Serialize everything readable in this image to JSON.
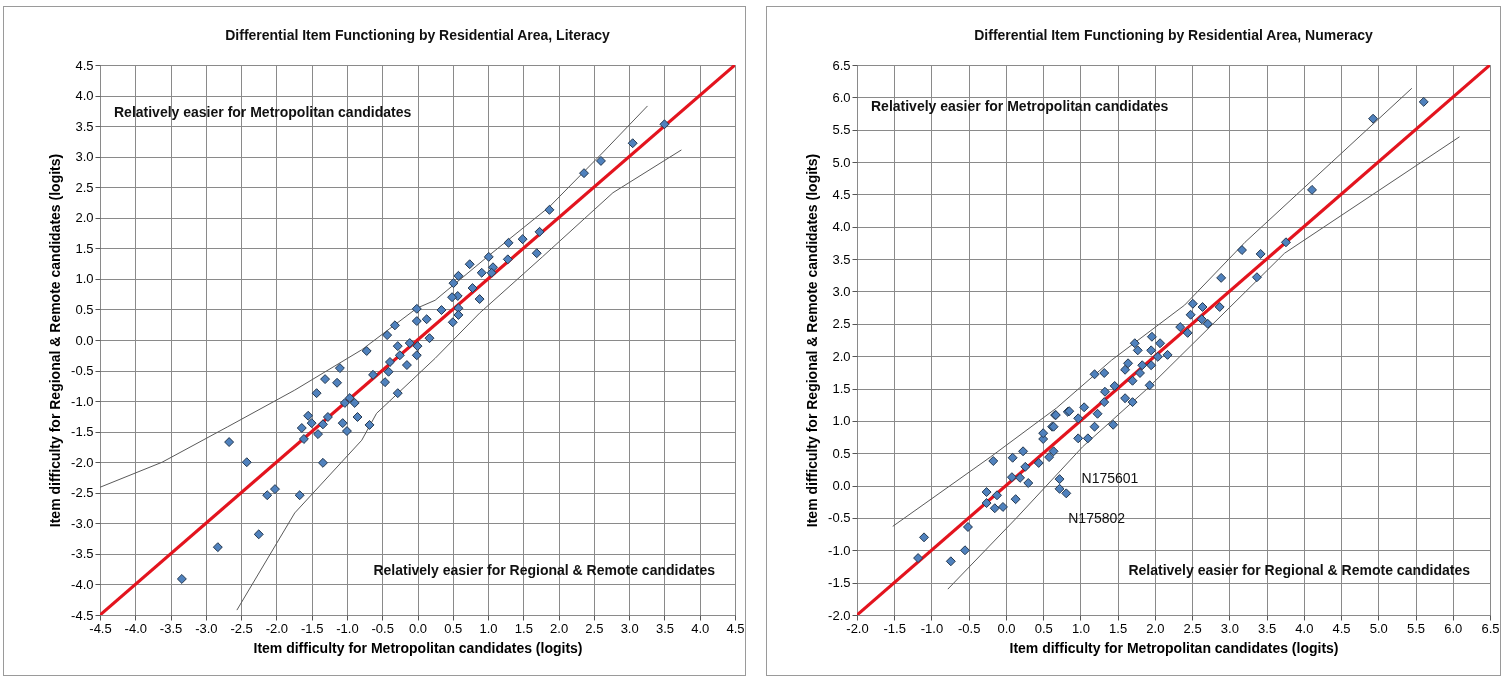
{
  "chart_data": [
    {
      "type": "scatter",
      "title": "Differential Item Functioning by Residential Area, Literacy",
      "xlabel": "Item difficulty for Metropolitan candidates (logits)",
      "ylabel": "Item difficulty for Regional & Remote candidates (logits)",
      "xlim": [
        -4.5,
        4.5
      ],
      "ylim": [
        -4.5,
        4.5
      ],
      "xticks": [
        -4.5,
        {
          "value": -4,
          "label": "-4.0"
        },
        -3.5,
        {
          "value": -3,
          "label": "-3.0"
        },
        -2.5,
        {
          "value": -2,
          "label": "-2.0"
        },
        -1.5,
        {
          "value": -1,
          "label": "-1.0"
        },
        -0.5,
        {
          "value": 0,
          "label": "0.0"
        },
        0.5,
        {
          "value": 1,
          "label": "1.0"
        },
        1.5,
        {
          "value": 2,
          "label": "2.0"
        },
        2.5,
        {
          "value": 3,
          "label": "3.0"
        },
        3.5,
        {
          "value": 4,
          "label": "4.0"
        },
        4.5
      ],
      "yticks": [
        -4.5,
        {
          "value": -4,
          "label": "-4.0"
        },
        -3.5,
        {
          "value": -3,
          "label": "-3.0"
        },
        -2.5,
        {
          "value": -2,
          "label": "-2.0"
        },
        -1.5,
        {
          "value": -1,
          "label": "-1.0"
        },
        -0.5,
        {
          "value": 0,
          "label": "0.0"
        },
        0.5,
        {
          "value": 1,
          "label": "1.0"
        },
        1.5,
        {
          "value": 2,
          "label": "2.0"
        },
        2.5,
        {
          "value": 3,
          "label": "3.0"
        },
        3.5,
        {
          "value": 4,
          "label": "4.0"
        },
        4.5
      ],
      "grid": true,
      "annotations": [
        "Relatively easier for Metropolitan candidates",
        "Relatively easier for Regional & Remote candidates"
      ],
      "series": [
        {
          "type": "scatter",
          "marker": "diamond",
          "color": "#4f81bd",
          "x": [
            3.5,
            3.05,
            2.6,
            2.36,
            1.87,
            1.73,
            1.69,
            1.49,
            1.29,
            1.28,
            1.01,
            1.07,
            1.05,
            0.91,
            0.74,
            0.78,
            0.88,
            0.58,
            0.51,
            0.57,
            0.49,
            0.58,
            0.5,
            0.58,
            0.34,
            -0.01,
            0.13,
            -0.01,
            -0.32,
            -0.43,
            -0.72,
            -1.1,
            -1.14,
            -0.28,
            -0.11,
            0,
            0.17,
            -0.25,
            -0.01,
            -0.15,
            -0.39,
            -0.41,
            -0.63,
            -0.46,
            -0.28,
            -0.96,
            -1.03,
            -1.31,
            -1.43,
            -0.89,
            -1.55,
            -1.27,
            -1.5,
            -1.34,
            -1.06,
            -0.85,
            -1.0,
            -1.64,
            -1.41,
            -1.61,
            -0.68,
            -2.67,
            -2.42,
            -1.34,
            -2.02,
            -2.13,
            -1.67,
            -2.25,
            -2.83,
            -3.34
          ],
          "values": [
            3.53,
            3.22,
            2.93,
            2.73,
            2.13,
            1.77,
            1.42,
            1.65,
            1.59,
            1.32,
            1.36,
            1.19,
            1.1,
            1.1,
            1.24,
            0.85,
            0.67,
            1.05,
            0.93,
            0.72,
            0.7,
            0.52,
            0.29,
            0.41,
            0.49,
            0.51,
            0.34,
            0.31,
            0.24,
            0.08,
            -0.18,
            -0.46,
            -0.7,
            -0.1,
            -0.05,
            -0.1,
            0.03,
            -0.25,
            -0.25,
            -0.41,
            -0.36,
            -0.52,
            -0.57,
            -0.69,
            -0.87,
            -0.95,
            -1.03,
            -0.64,
            -0.87,
            -1.03,
            -1.24,
            -1.26,
            -1.36,
            -1.38,
            -1.36,
            -1.26,
            -1.49,
            -1.44,
            -1.54,
            -1.62,
            -1.39,
            -1.67,
            -2.0,
            -2.01,
            -2.44,
            -2.54,
            -2.54,
            -3.18,
            -3.39,
            -3.91
          ]
        },
        {
          "type": "line",
          "color": "#e3141e",
          "x": [
            -4.5,
            4.5
          ],
          "values": [
            -4.5,
            4.5
          ]
        },
        {
          "type": "line",
          "color": "#5a5a5a",
          "x": [
            -4.5,
            -3.62,
            -2.69,
            -1.74,
            -0.79,
            -0.01,
            0.25,
            1.02,
            1.87,
            2.62,
            3.26
          ],
          "values": [
            -2.41,
            -2.0,
            -1.42,
            -0.82,
            -0.16,
            0.52,
            0.65,
            1.39,
            2.18,
            3.06,
            3.83
          ]
        },
        {
          "type": "line",
          "color": "#5a5a5a",
          "x": [
            -2.56,
            -1.74,
            -0.79,
            -0.58,
            0.25,
            0.88,
            1.77,
            2.77,
            3.74
          ],
          "values": [
            -4.42,
            -2.83,
            -1.64,
            -1.2,
            -0.3,
            0.44,
            1.36,
            2.41,
            3.11
          ]
        }
      ]
    },
    {
      "type": "scatter",
      "title": "Differential Item Functioning by Residential Area, Numeracy",
      "xlabel": "Item difficulty for Metropolitan candidates (logits)",
      "ylabel": "Item difficulty for Regional & Remote candidates (logits)",
      "xlim": [
        -2,
        6.5
      ],
      "ylim": [
        -2,
        6.5
      ],
      "xticks": [
        {
          "value": -2,
          "label": "-2.0"
        },
        -1.5,
        {
          "value": -1,
          "label": "-1.0"
        },
        -0.5,
        {
          "value": 0,
          "label": "0.0"
        },
        0.5,
        {
          "value": 1,
          "label": "1.0"
        },
        1.5,
        {
          "value": 2,
          "label": "2.0"
        },
        2.5,
        {
          "value": 3,
          "label": "3.0"
        },
        3.5,
        {
          "value": 4,
          "label": "4.0"
        },
        4.5,
        {
          "value": 5,
          "label": "5.0"
        },
        5.5,
        {
          "value": 6,
          "label": "6.0"
        },
        6.5
      ],
      "yticks": [
        {
          "value": -2,
          "label": "-2.0"
        },
        -1.5,
        {
          "value": -1,
          "label": "-1.0"
        },
        -0.5,
        {
          "value": 0,
          "label": "0.0"
        },
        0.5,
        {
          "value": 1,
          "label": "1.0"
        },
        1.5,
        {
          "value": 2,
          "label": "2.0"
        },
        2.5,
        {
          "value": 3,
          "label": "3.0"
        },
        3.5,
        {
          "value": 4,
          "label": "4.0"
        },
        4.5,
        {
          "value": 5,
          "label": "5.0"
        },
        5.5,
        {
          "value": 6,
          "label": "6.0"
        },
        6.5
      ],
      "grid": true,
      "annotations": [
        "Relatively easier for Metropolitan candidates",
        "Relatively easier for Regional & Remote candidates",
        {
          "text": "N175601",
          "x": 0.72,
          "y": 0.1
        },
        {
          "text": "N175802",
          "x": 0.81,
          "y": -0.12
        }
      ],
      "series": [
        {
          "type": "scatter",
          "marker": "diamond",
          "color": "#4f81bd",
          "x": [
            5.61,
            4.93,
            4.11,
            3.76,
            3.17,
            3.42,
            3.37,
            2.89,
            2.87,
            2.51,
            2.64,
            2.48,
            2.63,
            2.71,
            2.34,
            2.44,
            1.96,
            2.07,
            1.73,
            1.77,
            1.95,
            2.17,
            2.04,
            1.64,
            1.83,
            1.95,
            1.6,
            1.8,
            1.19,
            1.32,
            1.7,
            1.93,
            1.46,
            1.33,
            1.6,
            1.7,
            0.83,
            1.05,
            1.32,
            0.97,
            1.23,
            0.66,
            0.62,
            1.19,
            1.44,
            0.97,
            1.1,
            -0.17,
            -0.26,
            -0.12,
            -0.26,
            -0.15,
            -0.04,
            0.13,
            0.08,
            0.19,
            0.3,
            0.26,
            0.09,
            0.23,
            0.44,
            0.58,
            0.64,
            0.5,
            0.5,
            0.64,
            0.67,
            0.85,
            0.72,
            0.81,
            0.72,
            -0.51,
            -1.1,
            -1.18,
            -0.74,
            -0.55
          ],
          "values": [
            5.93,
            5.67,
            4.57,
            3.76,
            3.64,
            3.58,
            3.22,
            3.21,
            2.76,
            2.81,
            2.76,
            2.64,
            2.57,
            2.5,
            2.45,
            2.36,
            2.3,
            2.2,
            2.2,
            2.09,
            2.09,
            2.02,
            1.99,
            1.89,
            1.86,
            1.86,
            1.79,
            1.74,
            1.72,
            1.74,
            1.62,
            1.55,
            1.54,
            1.45,
            1.35,
            1.29,
            1.14,
            1.21,
            1.29,
            1.04,
            1.11,
            1.09,
            0.91,
            0.91,
            0.94,
            0.73,
            0.73,
            0.38,
            -0.1,
            -0.15,
            -0.27,
            -0.35,
            -0.33,
            -0.21,
            0.13,
            0.12,
            0.04,
            0.29,
            0.43,
            0.53,
            0.35,
            0.44,
            0.53,
            0.72,
            0.81,
            0.91,
            1.09,
            1.15,
            0.1,
            -0.12,
            -0.05,
            -0.64,
            -0.8,
            -1.12,
            -1.17,
            -1.0
          ]
        },
        {
          "type": "line",
          "color": "#e3141e",
          "x": [
            -2,
            6.5
          ],
          "values": [
            -2,
            6.5
          ]
        },
        {
          "type": "line",
          "color": "#5a5a5a",
          "x": [
            -1.52,
            -0.21,
            0.68,
            1.42,
            2.4,
            3.21,
            5.45
          ],
          "values": [
            -0.63,
            0.44,
            1.2,
            1.94,
            2.79,
            3.76,
            6.14
          ]
        },
        {
          "type": "line",
          "color": "#5a5a5a",
          "x": [
            -0.78,
            0.15,
            1.03,
            1.91,
            3.74,
            6.09
          ],
          "values": [
            -1.6,
            -0.49,
            0.6,
            1.51,
            3.59,
            5.39
          ]
        }
      ]
    }
  ]
}
